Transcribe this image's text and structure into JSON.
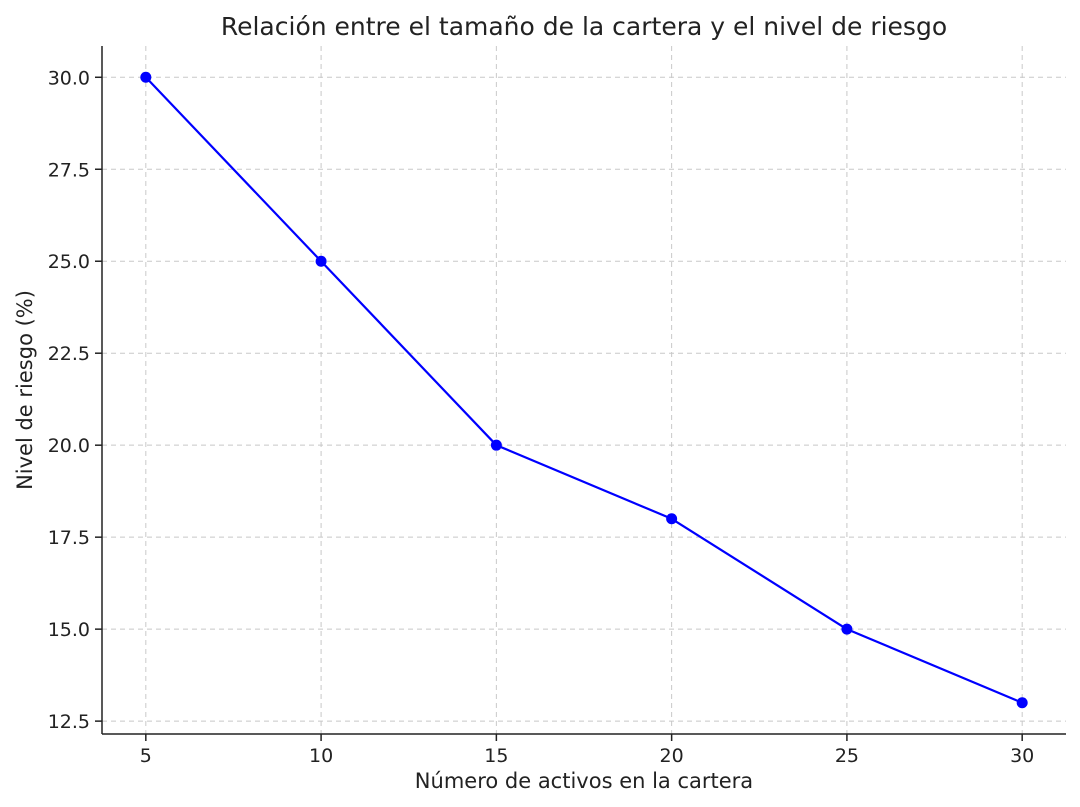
{
  "chart_data": {
    "type": "line",
    "title": "Relación entre el tamaño de la cartera y el nivel de riesgo",
    "xlabel": "Número de activos en la cartera",
    "ylabel": "Nivel de riesgo (%)",
    "x": [
      5,
      10,
      15,
      20,
      25,
      30
    ],
    "series": [
      {
        "values": [
          30,
          25,
          20,
          18,
          15,
          13
        ],
        "color": "#0000ff",
        "marker": "circle"
      }
    ],
    "xlim": [
      3.75,
      31.25
    ],
    "ylim": [
      12.15,
      30.85
    ],
    "xticks": [
      5,
      10,
      15,
      20,
      25,
      30
    ],
    "xtick_labels": [
      "5",
      "10",
      "15",
      "20",
      "25",
      "30"
    ],
    "yticks": [
      12.5,
      15.0,
      17.5,
      20.0,
      22.5,
      25.0,
      27.5,
      30.0
    ],
    "ytick_labels": [
      "12.5",
      "15.0",
      "17.5",
      "20.0",
      "22.5",
      "25.0",
      "27.5",
      "30.0"
    ],
    "grid": true,
    "legend": "none"
  }
}
